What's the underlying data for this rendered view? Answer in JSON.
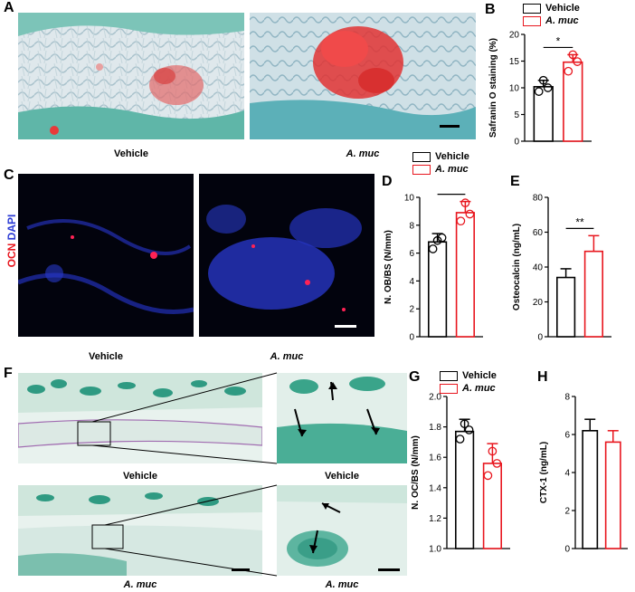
{
  "panel_letters": {
    "A": "A",
    "B": "B",
    "C": "C",
    "D": "D",
    "E": "E",
    "F": "F",
    "G": "G",
    "H": "H"
  },
  "captions": {
    "a_left": "Vehicle",
    "a_right": "A. muc",
    "c_left": "Vehicle",
    "c_right": "A. muc",
    "f_top_left": "Vehicle",
    "f_top_right": "Vehicle",
    "f_bottom_left": "A. muc",
    "f_bottom_right": "A. muc"
  },
  "stain_label": {
    "ocn": "OCN",
    "dapi": "DAPI"
  },
  "legend": {
    "vehicle": "Vehicle",
    "amuc": "A. muc"
  },
  "colors": {
    "vehicle": "#000000",
    "amuc": "#e8161e",
    "safranin": "#e83a3a",
    "ocn": "#ff2255",
    "dapi": "#2b3bd4",
    "teal": "#5fb8a8"
  },
  "chart_data": [
    {
      "panel": "B",
      "type": "bar",
      "categories": [
        "Vehicle",
        "A. muc"
      ],
      "values": [
        10.2,
        14.8
      ],
      "errors": [
        1.2,
        1.4
      ],
      "points": [
        [
          9.3,
          10.0,
          11.4
        ],
        [
          13.1,
          14.9,
          16.2
        ]
      ],
      "ylabel": "Safranin O staining (%)",
      "ylim": [
        0,
        20
      ],
      "yticks": [
        0,
        5,
        10,
        15,
        20
      ],
      "significance": "*"
    },
    {
      "panel": "D",
      "type": "bar",
      "categories": [
        "Vehicle",
        "A. muc"
      ],
      "values": [
        6.8,
        8.9
      ],
      "errors": [
        0.6,
        0.8
      ],
      "points": [
        [
          6.3,
          7.1,
          6.9
        ],
        [
          8.3,
          8.8,
          9.6
        ]
      ],
      "ylabel": "N. OB/BS (N/mm)",
      "ylim": [
        0,
        10
      ],
      "yticks": [
        0,
        2,
        4,
        6,
        8,
        10
      ],
      "significance": "*"
    },
    {
      "panel": "E",
      "type": "bar",
      "categories": [
        "Vehicle",
        "A. muc"
      ],
      "values": [
        34,
        49
      ],
      "errors": [
        5,
        9
      ],
      "points": [],
      "ylabel": "Osteocalcin (ng/mL)",
      "ylim": [
        0,
        80
      ],
      "yticks": [
        0,
        20,
        40,
        60,
        80
      ],
      "significance": "**"
    },
    {
      "panel": "G",
      "type": "bar",
      "categories": [
        "Vehicle",
        "A. muc"
      ],
      "values": [
        1.77,
        1.56
      ],
      "errors": [
        0.08,
        0.13
      ],
      "points": [
        [
          1.72,
          1.78,
          1.82
        ],
        [
          1.48,
          1.56,
          1.64
        ]
      ],
      "ylabel": "N. OC/BS (N/mm)",
      "ylim": [
        1.0,
        2.0
      ],
      "yticks": [
        1.0,
        1.2,
        1.4,
        1.6,
        1.8,
        2.0
      ],
      "significance": ""
    },
    {
      "panel": "H",
      "type": "bar",
      "categories": [
        "Vehicle",
        "A. muc"
      ],
      "values": [
        6.2,
        5.6
      ],
      "errors": [
        0.6,
        0.6
      ],
      "points": [],
      "ylabel": "CTX-1 (ng/mL)",
      "ylim": [
        0,
        8
      ],
      "yticks": [
        0,
        2,
        4,
        6,
        8
      ],
      "significance": ""
    }
  ]
}
